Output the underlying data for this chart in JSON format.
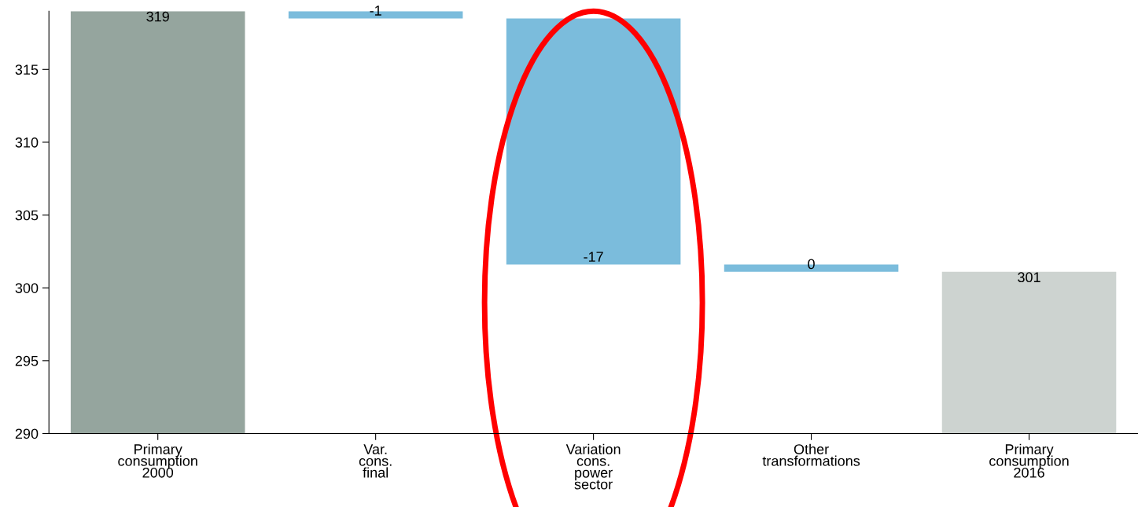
{
  "chart_data": {
    "type": "bar",
    "categories": [
      "Primary\nconsumption\n2000",
      "Var.\ncons.\nfinal",
      "Variation\ncons.\npower\nsector",
      "Other\ntransformations",
      "Primary\nconsumption\n2016"
    ],
    "values": [
      319,
      -0.5,
      -16.9,
      -0.5,
      301.1
    ],
    "base": [
      null,
      319,
      318.5,
      301.6,
      null
    ],
    "colors": [
      "#95a59e",
      "#7bbcdc",
      "#7bbcdc",
      "#7bbcdc",
      "#cdd3d0"
    ],
    "value_labels": [
      "319",
      "-1",
      "-17",
      "0",
      "301"
    ],
    "ylim": [
      290,
      319
    ],
    "yticks": [
      290,
      295,
      300,
      305,
      310,
      315
    ],
    "grid": false,
    "legend": false
  }
}
